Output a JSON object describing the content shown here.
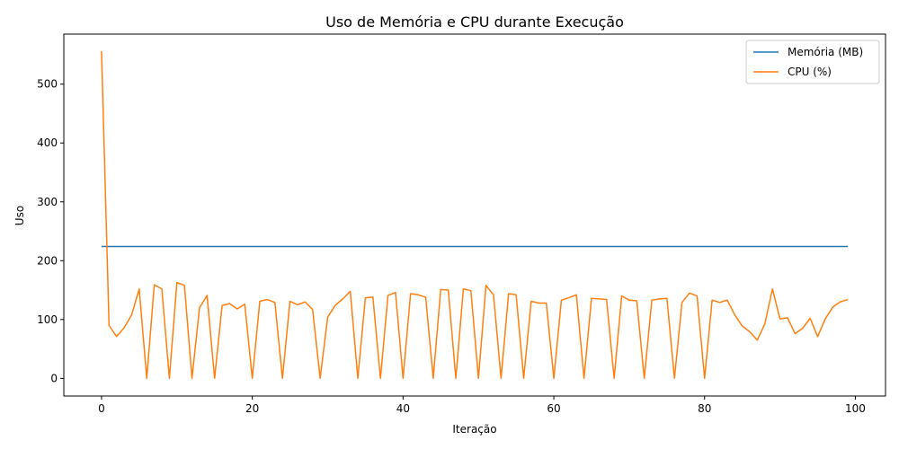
{
  "chart_data": {
    "type": "line",
    "title": "Uso de Memória e CPU durante Execução",
    "xlabel": "Iteração",
    "ylabel": "Uso",
    "xlim": [
      -5,
      104
    ],
    "ylim": [
      -30,
      585
    ],
    "xticks": [
      0,
      20,
      40,
      60,
      80,
      100
    ],
    "yticks": [
      0,
      100,
      200,
      300,
      400,
      500
    ],
    "grid": false,
    "legend_position": "top-right",
    "series": [
      {
        "name": "Memória (MB)",
        "color": "#1f77b4",
        "x": [
          0,
          99
        ],
        "y": [
          224,
          224
        ]
      },
      {
        "name": "CPU (%)",
        "color": "#ff7f0e",
        "x": [
          0,
          1,
          2,
          3,
          4,
          5,
          6,
          7,
          8,
          9,
          10,
          11,
          12,
          13,
          14,
          15,
          16,
          17,
          18,
          19,
          20,
          21,
          22,
          23,
          24,
          25,
          26,
          27,
          28,
          29,
          30,
          31,
          32,
          33,
          34,
          35,
          36,
          37,
          38,
          39,
          40,
          41,
          42,
          43,
          44,
          45,
          46,
          47,
          48,
          49,
          50,
          51,
          52,
          53,
          54,
          55,
          56,
          57,
          58,
          59,
          60,
          61,
          62,
          63,
          64,
          65,
          66,
          67,
          68,
          69,
          70,
          71,
          72,
          73,
          74,
          75,
          76,
          77,
          78,
          79,
          80,
          81,
          82,
          83,
          84,
          85,
          86,
          87,
          88,
          89,
          90,
          91,
          92,
          93,
          94,
          95,
          96,
          97,
          98,
          99
        ],
        "y": [
          556,
          90,
          71,
          86,
          108,
          152,
          0,
          159,
          152,
          0,
          163,
          158,
          0,
          120,
          141,
          0,
          124,
          127,
          118,
          126,
          0,
          131,
          134,
          129,
          0,
          131,
          125,
          130,
          117,
          0,
          104,
          124,
          135,
          148,
          0,
          137,
          138,
          0,
          141,
          146,
          0,
          144,
          142,
          138,
          0,
          151,
          150,
          0,
          152,
          149,
          0,
          158,
          142,
          0,
          144,
          142,
          0,
          131,
          128,
          128,
          0,
          133,
          137,
          142,
          0,
          136,
          135,
          134,
          0,
          140,
          133,
          132,
          0,
          133,
          135,
          136,
          0,
          129,
          145,
          140,
          0,
          133,
          129,
          133,
          108,
          89,
          79,
          65,
          93,
          152,
          101,
          103,
          76,
          85,
          102,
          71,
          101,
          121,
          130,
          134
        ]
      }
    ]
  }
}
